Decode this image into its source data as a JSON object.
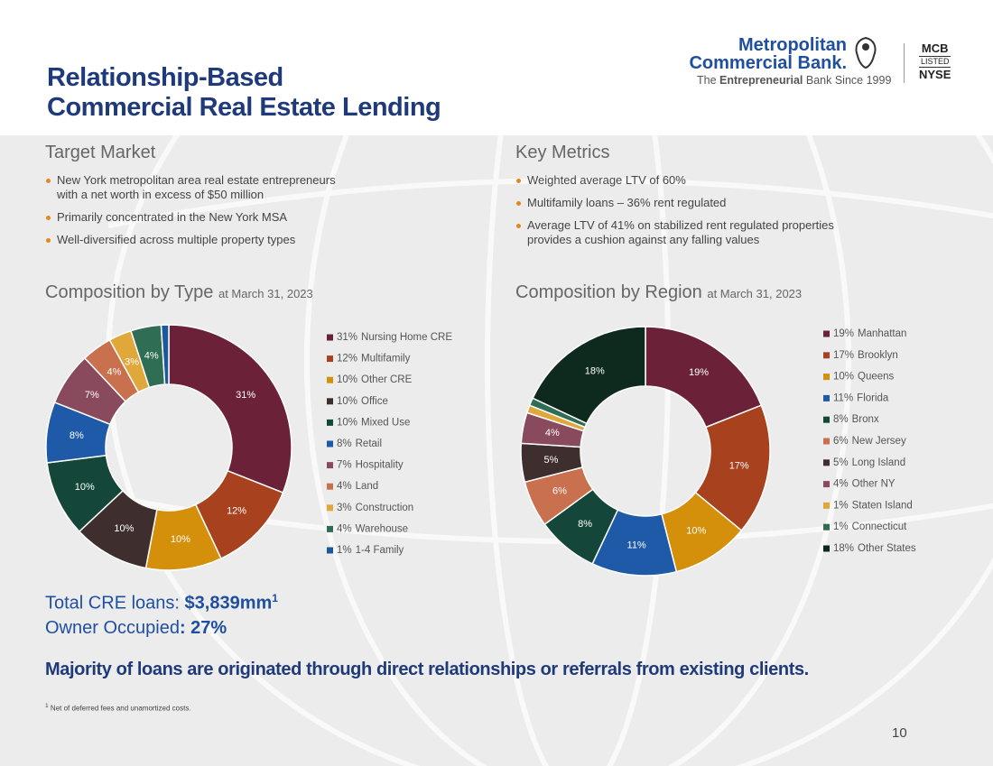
{
  "header": {
    "title_lines": [
      "Relationship-Based",
      "Commercial Real Estate Lending"
    ]
  },
  "logo": {
    "name_line1": "Metropolitan",
    "name_line2": "Commercial Bank.",
    "tagline_pre": "The ",
    "tagline_bold": "Entrepreneurial",
    "tagline_post": " Bank Since 1999",
    "listing": [
      "MCB",
      "LISTED",
      "NYSE"
    ]
  },
  "sections": [
    {
      "heading": "Target Market",
      "bullets": [
        "New York metropolitan area real estate entrepreneurs with a net worth in excess of $50 million",
        "Primarily concentrated in the New York MSA",
        "Well-diversified across multiple property types"
      ]
    },
    {
      "heading": "Key Metrics",
      "bullets": [
        "Weighted average LTV of 60%",
        "Multifamily loans – 36% rent regulated",
        "Average LTV of 41% on stabilized rent regulated properties provides a cushion against any falling values"
      ]
    }
  ],
  "chart_data": [
    {
      "type": "donut",
      "title": "Composition by Type",
      "subtitle": "at March 31, 2023",
      "categories": [
        "Nursing Home CRE",
        "Multifamily",
        "Other CRE",
        "Office",
        "Mixed Use",
        "Retail",
        "Hospitality",
        "Land",
        "Construction",
        "Warehouse",
        "1-4 Family"
      ],
      "values": [
        31,
        12,
        10,
        10,
        10,
        8,
        7,
        4,
        3,
        4,
        1
      ],
      "value_labels": [
        "31%",
        "12%",
        "10%",
        "10%",
        "10%",
        "8%",
        "7%",
        "4%",
        "3%",
        "4%",
        "1%"
      ],
      "colors": [
        "#6b2238",
        "#a8411e",
        "#d4900a",
        "#3f2e2e",
        "#14473a",
        "#1e5aa8",
        "#8a4a5e",
        "#c9704f",
        "#e0a83a",
        "#2f6e55",
        "#1a5a9a"
      ],
      "legend": "right"
    },
    {
      "type": "donut",
      "title": "Composition by Region",
      "subtitle": "at March 31, 2023",
      "categories": [
        "Manhattan",
        "Brooklyn",
        "Queens",
        "Florida",
        "Bronx",
        "New Jersey",
        "Long Island",
        "Other NY",
        "Staten Island",
        "Connecticut",
        "Other States"
      ],
      "values": [
        19,
        17,
        10,
        11,
        8,
        6,
        5,
        4,
        1,
        1,
        18
      ],
      "value_labels": [
        "19%",
        "17%",
        "10%",
        "11%",
        "8%",
        "6%",
        "5%",
        "4%",
        "1%",
        "1%",
        "18%"
      ],
      "colors": [
        "#6b2238",
        "#a8411e",
        "#d4900a",
        "#1e5aa8",
        "#14473a",
        "#c9704f",
        "#3f2e2e",
        "#8a4a5e",
        "#e0a83a",
        "#2f6e55",
        "#0e2a1e"
      ],
      "legend": "right"
    }
  ],
  "totals": {
    "loans_label": "Total CRE loans: ",
    "loans_value": "$3,839mm",
    "loans_note": "1",
    "occupied_label": "Owner Occupied",
    "occupied_value": ": 27%"
  },
  "tagline": "Majority of loans are originated through direct relationships or referrals from existing clients.",
  "footnote": {
    "mark": "1",
    "text": " Net of deferred fees and unamortized costs."
  },
  "page_number": "10"
}
